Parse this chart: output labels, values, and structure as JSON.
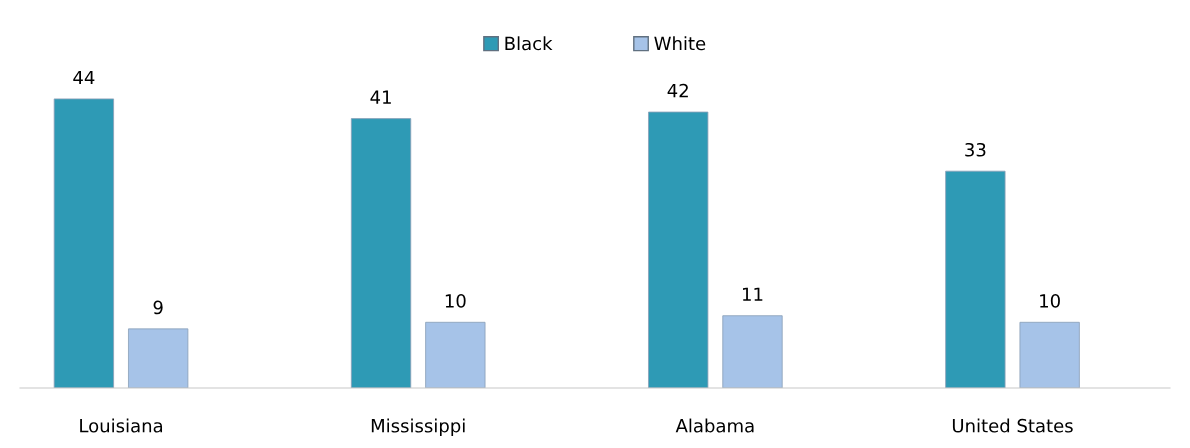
{
  "chart_data": {
    "type": "bar",
    "categories": [
      "Louisiana",
      "Mississippi",
      "Alabama",
      "United States"
    ],
    "series": [
      {
        "name": "Black",
        "color": "#2e9ab5",
        "values": [
          44,
          41,
          42,
          33
        ]
      },
      {
        "name": "White",
        "color": "#a6c3e8",
        "values": [
          9,
          10,
          11,
          10
        ]
      }
    ],
    "data_labels": true,
    "legend": "top"
  }
}
